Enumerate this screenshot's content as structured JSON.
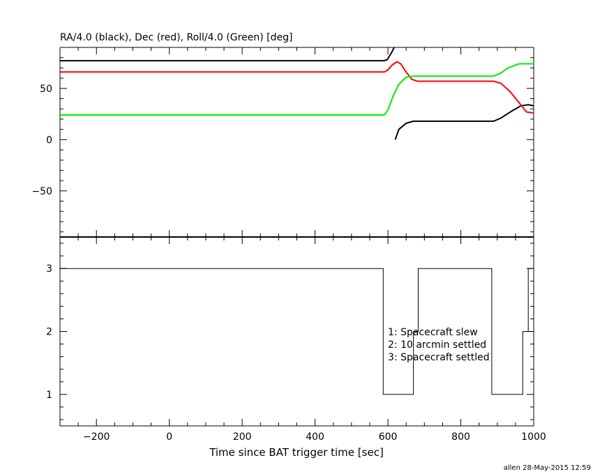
{
  "chart_data": [
    {
      "type": "line",
      "title": "RA/4.0 (black), Dec (red), Roll/4.0 (Green) [deg]",
      "ylim": [
        -95,
        90
      ],
      "yticks": [
        -50,
        0,
        50
      ],
      "xlim": [
        -300,
        1000
      ],
      "grid": false,
      "series": [
        {
          "color": "#000000",
          "segments": [
            [
              [
                -300,
                77
              ],
              [
                370,
                77
              ],
              [
                590,
                77
              ],
              [
                598,
                78
              ],
              [
                610,
                85
              ],
              [
                617,
                90
              ]
            ],
            [
              [
                620,
                0
              ],
              [
                630,
                10
              ],
              [
                650,
                16
              ],
              [
                670,
                18
              ],
              [
                890,
                18
              ],
              [
                910,
                21
              ],
              [
                940,
                28
              ],
              [
                965,
                33
              ],
              [
                985,
                34
              ],
              [
                1000,
                33
              ]
            ]
          ]
        },
        {
          "color": "#ff0000",
          "segments": [
            [
              [
                -300,
                66
              ],
              [
                590,
                66
              ],
              [
                600,
                68
              ],
              [
                612,
                73
              ],
              [
                625,
                76
              ],
              [
                635,
                74
              ],
              [
                650,
                66
              ],
              [
                665,
                59
              ],
              [
                680,
                57
              ],
              [
                890,
                57
              ],
              [
                910,
                55
              ],
              [
                935,
                47
              ],
              [
                960,
                36
              ],
              [
                980,
                27
              ],
              [
                1000,
                26
              ]
            ]
          ]
        },
        {
          "color": "#00ee00",
          "segments": [
            [
              [
                -300,
                24
              ],
              [
                590,
                24
              ],
              [
                600,
                29
              ],
              [
                615,
                43
              ],
              [
                630,
                54
              ],
              [
                650,
                61
              ],
              [
                670,
                62
              ],
              [
                890,
                62
              ],
              [
                910,
                65
              ],
              [
                930,
                70
              ],
              [
                960,
                74
              ],
              [
                1000,
                74
              ]
            ]
          ]
        }
      ]
    },
    {
      "type": "line",
      "ylim": [
        0.5,
        3.5
      ],
      "yticks": [
        1,
        2,
        3
      ],
      "xlim": [
        -300,
        1000
      ],
      "xticks": [
        -200,
        0,
        200,
        400,
        600,
        800,
        1000
      ],
      "xlabel": "Time since BAT trigger time [sec]",
      "grid": false,
      "series": [
        {
          "color": "#000000",
          "x": [
            -300,
            587,
            587,
            670,
            670,
            683,
            683,
            885,
            885,
            970,
            970,
            985,
            985,
            1000
          ],
          "y": [
            3,
            3,
            1,
            1,
            2,
            2,
            3,
            3,
            1,
            1,
            2,
            2,
            3,
            3
          ]
        }
      ],
      "annotations": [
        "1: Spacecraft slew",
        "2: 10 arcmin settled",
        "3: Spacecraft settled"
      ]
    }
  ],
  "footer": "allen 28-May-2015 12:59"
}
